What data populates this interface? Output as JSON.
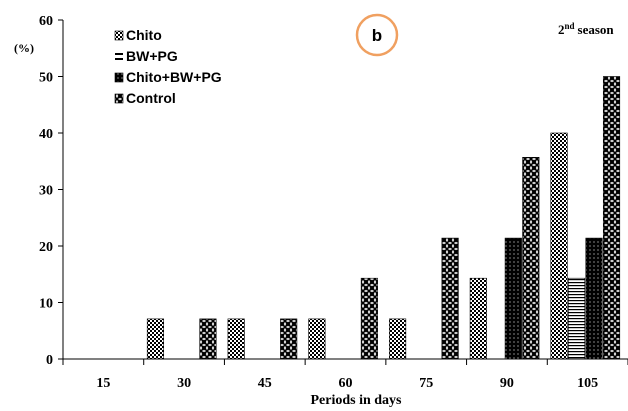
{
  "chart_data": {
    "type": "bar",
    "title": "",
    "badge": "b",
    "season": {
      "number": "2",
      "suffix": "nd",
      "word": "season"
    },
    "ylabel": "(%)",
    "xlabel": "Periods in days",
    "ylim": [
      0,
      60
    ],
    "yticks": [
      0,
      10,
      20,
      30,
      40,
      50,
      60
    ],
    "legend_position": "top-left",
    "grid": false,
    "categories": [
      "15",
      "30",
      "45",
      "60",
      "75",
      "90",
      "105"
    ],
    "series": [
      {
        "name": "Chito",
        "pattern": "checker",
        "values": [
          0,
          7.1,
          7.1,
          7.1,
          7.1,
          14.3,
          40
        ]
      },
      {
        "name": "BW+PG",
        "pattern": "hlines",
        "values": [
          0,
          0,
          0,
          0,
          0,
          0,
          14.3
        ]
      },
      {
        "name": "Chito+BW+PG",
        "pattern": "blackgrid",
        "values": [
          0,
          0,
          0,
          0,
          0,
          21.4,
          21.4
        ]
      },
      {
        "name": "Control",
        "pattern": "diamond",
        "values": [
          0,
          7.1,
          7.1,
          14.3,
          21.4,
          35.7,
          50
        ]
      }
    ],
    "colors": {
      "axis": "#000000",
      "badge_ring": "#f0a060",
      "bar_dark": "#000000"
    }
  }
}
